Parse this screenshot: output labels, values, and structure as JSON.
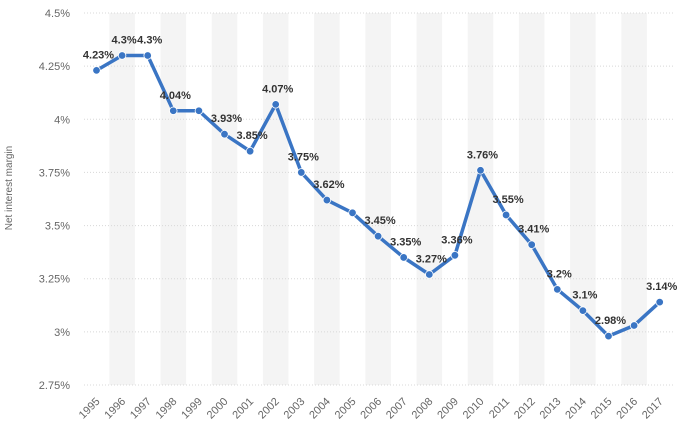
{
  "chart_data": {
    "type": "line",
    "title": "",
    "xlabel": "",
    "ylabel": "Net interest margin",
    "ylim": [
      2.75,
      4.5
    ],
    "y_ticks": [
      2.75,
      3,
      3.25,
      3.5,
      3.75,
      4,
      4.25,
      4.5
    ],
    "y_tick_labels": [
      "2.75%",
      "3%",
      "3.25%",
      "3.5%",
      "3.75%",
      "4%",
      "4.25%",
      "4.5%"
    ],
    "grid": true,
    "categories": [
      "1995",
      "1996",
      "1997",
      "1998",
      "1999",
      "2000",
      "2001",
      "2002",
      "2003",
      "2004",
      "2005",
      "2006",
      "2007",
      "2008",
      "2009",
      "2010",
      "2011",
      "2012",
      "2013",
      "2014",
      "2015",
      "2016",
      "2017"
    ],
    "series": [
      {
        "name": "Net interest margin",
        "color": "#3a75c4",
        "values": [
          4.23,
          4.3,
          4.3,
          4.04,
          4.04,
          3.93,
          3.85,
          4.07,
          3.75,
          3.62,
          3.56,
          3.45,
          3.35,
          3.27,
          3.36,
          3.76,
          3.55,
          3.41,
          3.2,
          3.1,
          2.98,
          3.03,
          3.14
        ],
        "labels": [
          "4.23%",
          "4.3%",
          "4.3%",
          "4.04%",
          "",
          "3.93%",
          "3.85%",
          "4.07%",
          "3.75%",
          "3.62%",
          "",
          "3.45%",
          "3.35%",
          "3.27%",
          "3.36%",
          "3.76%",
          "3.55%",
          "3.41%",
          "3.2%",
          "3.1%",
          "2.98%",
          "",
          "3.14%"
        ]
      }
    ],
    "colors": {
      "band": "#f4f4f4",
      "grid": "#d8d8d8",
      "line": "#3a75c4",
      "marker": "#3a75c4",
      "label": "#333333",
      "tick": "#666666"
    }
  }
}
